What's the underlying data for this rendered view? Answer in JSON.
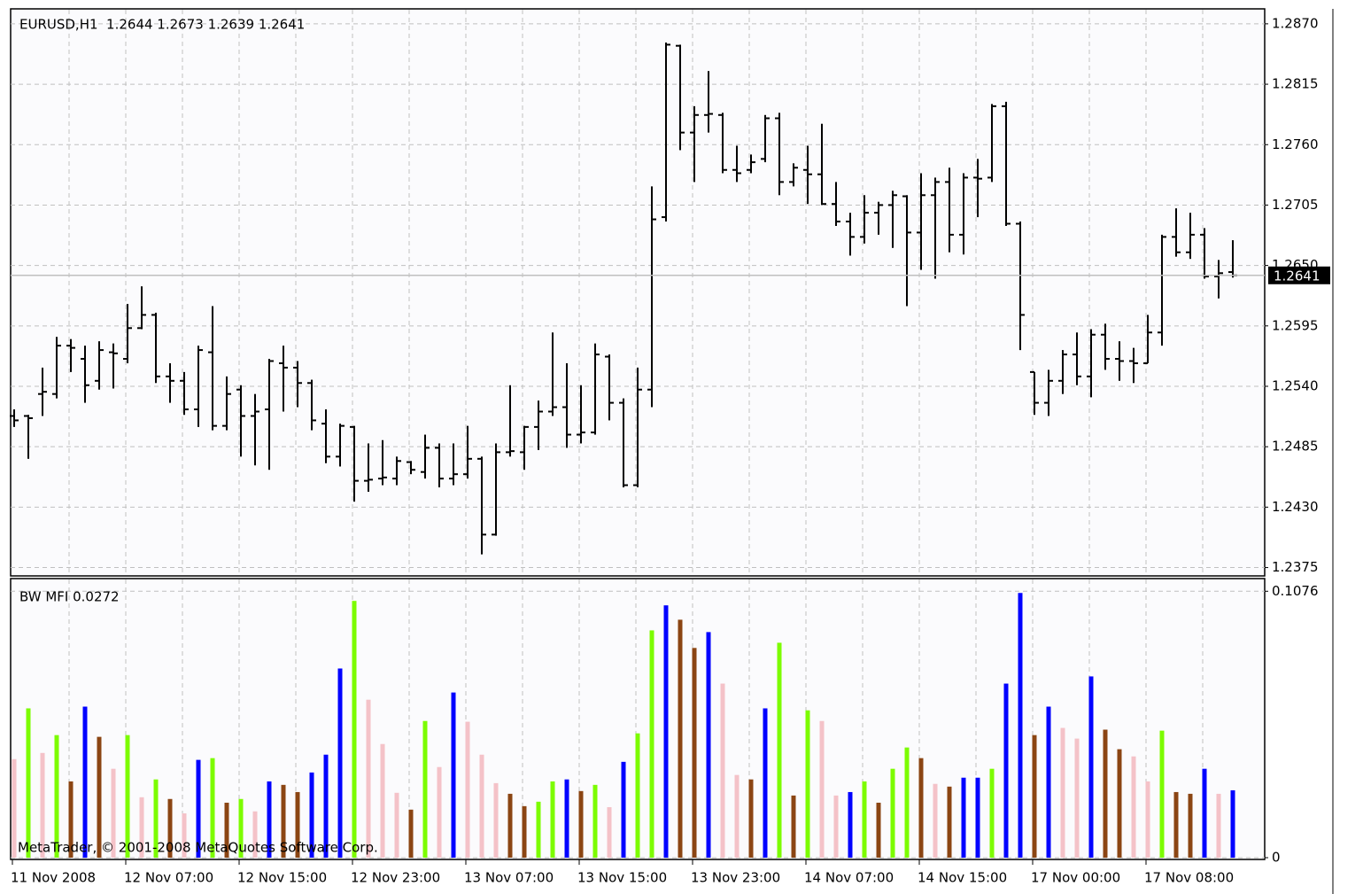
{
  "chart_data": [
    {
      "type": "ohlc",
      "title": "EURUSD,H1  1.2644 1.2673 1.2639 1.2641",
      "categories": [
        "11 Nov 2008",
        null,
        null,
        null,
        null,
        null,
        null,
        null,
        "12 Nov 07:00",
        null,
        null,
        null,
        null,
        null,
        null,
        null,
        "12 Nov 15:00",
        null,
        null,
        null,
        null,
        null,
        null,
        null,
        "12 Nov 23:00",
        null,
        null,
        null,
        null,
        null,
        null,
        null,
        "13 Nov 07:00",
        null,
        null,
        null,
        null,
        null,
        null,
        null,
        "13 Nov 15:00",
        null,
        null,
        null,
        null,
        null,
        null,
        null,
        "13 Nov 23:00",
        null,
        null,
        null,
        null,
        null,
        null,
        null,
        "14 Nov 07:00",
        null,
        null,
        null,
        null,
        null,
        null,
        null,
        "14 Nov 15:00",
        null,
        null,
        null,
        null,
        null,
        null,
        null,
        "17 Nov 00:00",
        null,
        null,
        null,
        null,
        null,
        null,
        null,
        "17 Nov 08:00",
        null,
        null,
        null,
        null,
        null,
        null
      ],
      "open": [
        1.2513,
        1.2513,
        1.2533,
        1.2533,
        1.2577,
        1.2565,
        1.2545,
        1.2571,
        1.2565,
        1.2593,
        1.2605,
        1.2549,
        1.2545,
        1.2519,
        1.2571,
        1.2504,
        1.2537,
        1.2513,
        1.2519,
        1.2561,
        1.2557,
        1.2543,
        1.2506,
        1.2476,
        1.2503,
        1.2454,
        1.2456,
        1.2456,
        1.2471,
        1.2462,
        1.2484,
        1.2456,
        1.246,
        1.2474,
        1.2405,
        1.248,
        1.248,
        1.2503,
        1.2517,
        1.2521,
        1.2496,
        1.2498,
        1.2567,
        1.2525,
        1.245,
        1.2537,
        1.2694,
        1.285,
        1.2771,
        1.2787,
        1.2787,
        1.2737,
        1.2737,
        1.2747,
        1.2784,
        1.2726,
        1.2737,
        1.2733,
        1.2706,
        1.269,
        1.2676,
        1.2698,
        1.2705,
        1.2713,
        1.268,
        1.2714,
        1.2726,
        1.2678,
        1.273,
        1.273,
        1.2795,
        1.2688,
        1.2553,
        1.2525,
        1.2545,
        1.2569,
        1.2549,
        1.2587,
        1.2565,
        1.2563,
        1.2561,
        1.2589,
        1.2676,
        1.2662,
        1.2678,
        1.264,
        1.2644
      ],
      "high": [
        1.2519,
        1.2514,
        1.2557,
        1.2585,
        1.2583,
        1.2577,
        1.2581,
        1.2579,
        1.2615,
        1.2631,
        1.2607,
        1.2561,
        1.2553,
        1.2577,
        1.2613,
        1.2549,
        1.2541,
        1.2533,
        1.2565,
        1.2577,
        1.2563,
        1.2546,
        1.2519,
        1.2506,
        1.2504,
        1.2488,
        1.2491,
        1.2476,
        1.2472,
        1.2496,
        1.2488,
        1.2488,
        1.2504,
        1.2476,
        1.2488,
        1.2541,
        1.2504,
        1.2527,
        1.2589,
        1.2561,
        1.2541,
        1.2579,
        1.2569,
        1.2529,
        1.2557,
        1.2722,
        1.2853,
        1.2851,
        1.2795,
        1.2827,
        1.2789,
        1.2759,
        1.2751,
        1.2787,
        1.2789,
        1.2743,
        1.2759,
        1.2779,
        1.2726,
        1.2698,
        1.2714,
        1.2708,
        1.2718,
        1.2714,
        1.2734,
        1.273,
        1.2739,
        1.2734,
        1.2747,
        1.2797,
        1.2799,
        1.269,
        1.2553,
        1.2555,
        1.2573,
        1.2589,
        1.2592,
        1.2597,
        1.2581,
        1.2575,
        1.2605,
        1.2678,
        1.2702,
        1.2698,
        1.2684,
        1.2655,
        1.2673
      ],
      "low": [
        1.2503,
        1.2474,
        1.2513,
        1.2529,
        1.2553,
        1.2525,
        1.2537,
        1.2538,
        1.2561,
        1.2592,
        1.2543,
        1.2525,
        1.2514,
        1.2503,
        1.25,
        1.25,
        1.2476,
        1.2468,
        1.2464,
        1.2517,
        1.2521,
        1.25,
        1.247,
        1.2467,
        1.2435,
        1.2444,
        1.245,
        1.245,
        1.246,
        1.2456,
        1.2448,
        1.245,
        1.2456,
        1.2387,
        1.2404,
        1.2476,
        1.2464,
        1.2482,
        1.2513,
        1.2484,
        1.2488,
        1.2496,
        1.2509,
        1.2448,
        1.2448,
        1.2521,
        1.269,
        1.2755,
        1.2726,
        1.2771,
        1.2734,
        1.2726,
        1.2734,
        1.2744,
        1.2714,
        1.2722,
        1.2706,
        1.2705,
        1.2686,
        1.2659,
        1.267,
        1.2678,
        1.2666,
        1.2613,
        1.2646,
        1.2638,
        1.2662,
        1.266,
        1.2694,
        1.2726,
        1.2686,
        1.2573,
        1.2514,
        1.2513,
        1.2533,
        1.2541,
        1.253,
        1.2555,
        1.2545,
        1.2543,
        1.2561,
        1.2577,
        1.2658,
        1.2656,
        1.2638,
        1.262,
        1.2639
      ],
      "close": [
        1.2509,
        1.2511,
        1.2535,
        1.2577,
        1.2575,
        1.2541,
        1.2573,
        1.257,
        1.2593,
        1.2605,
        1.2549,
        1.2545,
        1.2519,
        1.2573,
        1.2504,
        1.2533,
        1.2513,
        1.2517,
        1.2563,
        1.2557,
        1.2543,
        1.2509,
        1.2476,
        1.2504,
        1.2454,
        1.2455,
        1.2457,
        1.2472,
        1.2464,
        1.2484,
        1.2456,
        1.246,
        1.2474,
        1.2405,
        1.248,
        1.2481,
        1.2503,
        1.2517,
        1.2521,
        1.2496,
        1.2498,
        1.2569,
        1.2525,
        1.245,
        1.2537,
        1.2692,
        1.2851,
        1.2771,
        1.2787,
        1.2788,
        1.2737,
        1.2734,
        1.2744,
        1.2784,
        1.2726,
        1.2739,
        1.2733,
        1.2706,
        1.269,
        1.2676,
        1.2698,
        1.2705,
        1.2714,
        1.268,
        1.2714,
        1.2726,
        1.2678,
        1.273,
        1.2729,
        1.2795,
        1.2688,
        1.2605,
        1.2525,
        1.2545,
        1.2569,
        1.2549,
        1.2587,
        1.2565,
        1.2563,
        1.2561,
        1.2589,
        1.2676,
        1.2662,
        1.2678,
        1.264,
        1.2643,
        1.2641
      ],
      "color": "#000000",
      "ylim": [
        1.2369,
        1.2882
      ],
      "yticks": [
        {
          "value": 1.287,
          "label": "1.2870"
        },
        1.2815,
        {
          "value": 1.276,
          "label": "1.2760"
        },
        1.2705,
        {
          "value": 1.265,
          "label": "1.2650"
        },
        1.2595,
        {
          "value": 1.254,
          "label": "1.2540"
        },
        1.2485,
        {
          "value": 1.243,
          "label": "1.2430"
        },
        1.2375
      ],
      "grid": true,
      "bid_line": 1.2641
    },
    {
      "type": "bar",
      "title": "BW MFI 0.0272",
      "values": [
        0.0398,
        0.0603,
        0.0423,
        0.0495,
        0.0308,
        0.061,
        0.0488,
        0.0359,
        0.0495,
        0.0244,
        0.0316,
        0.0237,
        0.0179,
        0.0395,
        0.0402,
        0.0222,
        0.0237,
        0.0187,
        0.0308,
        0.0294,
        0.0265,
        0.0344,
        0.0416,
        0.0764,
        0.1037,
        0.0638,
        0.0459,
        0.0262,
        0.0194,
        0.0552,
        0.0366,
        0.0667,
        0.0549,
        0.0416,
        0.0301,
        0.0258,
        0.0208,
        0.0226,
        0.0308,
        0.0316,
        0.0269,
        0.0294,
        0.0204,
        0.0387,
        0.0502,
        0.0918,
        0.1019,
        0.0961,
        0.0847,
        0.0911,
        0.0703,
        0.0334,
        0.0316,
        0.0603,
        0.0868,
        0.0251,
        0.0595,
        0.0552,
        0.0251,
        0.0265,
        0.0308,
        0.0222,
        0.0359,
        0.0445,
        0.0402,
        0.0298,
        0.0287,
        0.0323,
        0.0323,
        0.0359,
        0.0703,
        0.1069,
        0.0495,
        0.061,
        0.0524,
        0.0481,
        0.0732,
        0.0517,
        0.0438,
        0.0409,
        0.0308,
        0.0513,
        0.0265,
        0.0258,
        0.0359,
        0.0258,
        0.0272
      ],
      "colors": [
        "#f4c2c8",
        "#7cfc00",
        "#f4c2c8",
        "#7cfc00",
        "#8b4513",
        "#0000ff",
        "#8b4513",
        "#f4c2c8",
        "#7cfc00",
        "#f4c2c8",
        "#7cfc00",
        "#8b4513",
        "#f4c2c8",
        "#0000ff",
        "#7cfc00",
        "#8b4513",
        "#7cfc00",
        "#f4c2c8",
        "#0000ff",
        "#8b4513",
        "#8b4513",
        "#0000ff",
        "#0000ff",
        "#0000ff",
        "#7cfc00",
        "#f4c2c8",
        "#f4c2c8",
        "#f4c2c8",
        "#8b4513",
        "#7cfc00",
        "#f4c2c8",
        "#0000ff",
        "#f4c2c8",
        "#f4c2c8",
        "#f4c2c8",
        "#8b4513",
        "#8b4513",
        "#7cfc00",
        "#7cfc00",
        "#0000ff",
        "#8b4513",
        "#7cfc00",
        "#f4c2c8",
        "#0000ff",
        "#7cfc00",
        "#7cfc00",
        "#0000ff",
        "#8b4513",
        "#8b4513",
        "#0000ff",
        "#f4c2c8",
        "#f4c2c8",
        "#8b4513",
        "#0000ff",
        "#7cfc00",
        "#8b4513",
        "#7cfc00",
        "#f4c2c8",
        "#f4c2c8",
        "#0000ff",
        "#7cfc00",
        "#8b4513",
        "#7cfc00",
        "#7cfc00",
        "#8b4513",
        "#f4c2c8",
        "#8b4513",
        "#0000ff",
        "#0000ff",
        "#7cfc00",
        "#0000ff",
        "#0000ff",
        "#8b4513",
        "#0000ff",
        "#f4c2c8",
        "#f4c2c8",
        "#0000ff",
        "#8b4513",
        "#8b4513",
        "#f4c2c8",
        "#f4c2c8",
        "#7cfc00",
        "#8b4513",
        "#8b4513",
        "#0000ff",
        "#f4c2c8",
        "#0000ff"
      ],
      "ylim": [
        0,
        0.112
      ],
      "yticks": [
        0,
        0.1076
      ],
      "grid": true
    }
  ],
  "watermark": "MetaTrader, © 2001-2008 MetaQuotes Software Corp."
}
